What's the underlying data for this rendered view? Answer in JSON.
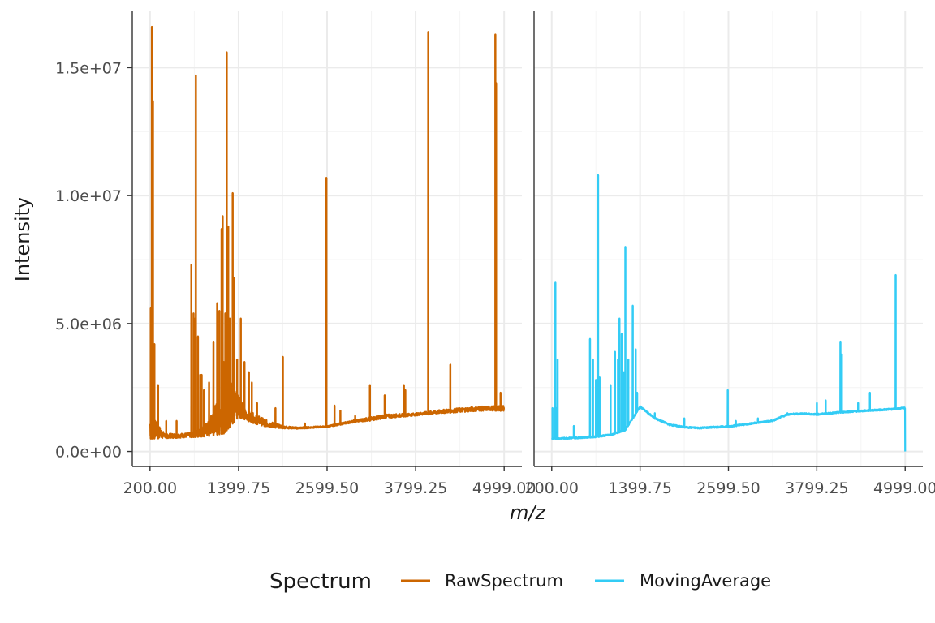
{
  "chart_data": {
    "type": "line",
    "xlabel": "m/z",
    "ylabel": "Intensity",
    "x_ticks": [
      "200.00",
      "1399.75",
      "2599.50",
      "3799.25",
      "4999.00"
    ],
    "x_tick_values": [
      200.0,
      1399.75,
      2599.5,
      3799.25,
      4999.0
    ],
    "y_ticks": [
      "0.0e+00",
      "5.0e+06",
      "1.0e+07",
      "1.5e+07"
    ],
    "y_tick_values": [
      0,
      5000000,
      10000000,
      15000000
    ],
    "xlim": [
      200,
      4999
    ],
    "ylim": [
      0,
      16700000
    ],
    "grid": true,
    "legend": {
      "title": "Spectrum",
      "placement": "bottom",
      "entries": [
        "RawSpectrum",
        "MovingAverage"
      ]
    },
    "colors": {
      "RawSpectrum": "#CC6600",
      "MovingAverage": "#33CCF5"
    },
    "panels": [
      {
        "series": "RawSpectrum",
        "baseline": [
          [
            200,
            500000
          ],
          [
            500,
            520000
          ],
          [
            800,
            560000
          ],
          [
            1000,
            600000
          ],
          [
            1200,
            700000
          ],
          [
            1400,
            1350000
          ],
          [
            1600,
            1100000
          ],
          [
            1800,
            950000
          ],
          [
            2000,
            900000
          ],
          [
            2200,
            880000
          ],
          [
            2599,
            950000
          ],
          [
            2800,
            1050000
          ],
          [
            3000,
            1150000
          ],
          [
            3200,
            1200000
          ],
          [
            3400,
            1300000
          ],
          [
            3600,
            1350000
          ],
          [
            3800,
            1400000
          ],
          [
            4000,
            1450000
          ],
          [
            4200,
            1500000
          ],
          [
            4500,
            1550000
          ],
          [
            4800,
            1600000
          ],
          [
            4999,
            1580000
          ]
        ],
        "noise_band": [
          [
            200,
            1500000
          ],
          [
            400,
            700000
          ],
          [
            600,
            700000
          ],
          [
            800,
            750000
          ],
          [
            1000,
            1200000
          ],
          [
            1100,
            2000000
          ],
          [
            1200,
            2200000
          ],
          [
            1300,
            2800000
          ],
          [
            1400,
            2400000
          ],
          [
            1500,
            1600000
          ],
          [
            1600,
            1500000
          ],
          [
            1800,
            1200000
          ],
          [
            2000,
            1000000
          ],
          [
            2200,
            950000
          ],
          [
            2599,
            1000000
          ],
          [
            3000,
            1250000
          ],
          [
            3400,
            1450000
          ],
          [
            3800,
            1500000
          ],
          [
            4200,
            1650000
          ],
          [
            4600,
            1750000
          ],
          [
            4999,
            1800000
          ]
        ],
        "peaks": [
          [
            210,
            5600000
          ],
          [
            225,
            16600000
          ],
          [
            240,
            13700000
          ],
          [
            260,
            4200000
          ],
          [
            310,
            2600000
          ],
          [
            420,
            1200000
          ],
          [
            560,
            1200000
          ],
          [
            760,
            7300000
          ],
          [
            790,
            5400000
          ],
          [
            810,
            5200000
          ],
          [
            822,
            14700000
          ],
          [
            850,
            4500000
          ],
          [
            880,
            3000000
          ],
          [
            900,
            3000000
          ],
          [
            930,
            2400000
          ],
          [
            1000,
            2700000
          ],
          [
            1060,
            4300000
          ],
          [
            1110,
            5800000
          ],
          [
            1140,
            5500000
          ],
          [
            1170,
            8700000
          ],
          [
            1185,
            9200000
          ],
          [
            1200,
            3500000
          ],
          [
            1220,
            5400000
          ],
          [
            1240,
            15600000
          ],
          [
            1260,
            8800000
          ],
          [
            1280,
            5200000
          ],
          [
            1320,
            10100000
          ],
          [
            1340,
            6800000
          ],
          [
            1380,
            3600000
          ],
          [
            1430,
            5200000
          ],
          [
            1480,
            3500000
          ],
          [
            1540,
            3100000
          ],
          [
            1580,
            2700000
          ],
          [
            1650,
            1900000
          ],
          [
            1750,
            1200000
          ],
          [
            1900,
            1700000
          ],
          [
            2000,
            3700000
          ],
          [
            2300,
            1100000
          ],
          [
            2590,
            10700000
          ],
          [
            2700,
            1800000
          ],
          [
            2780,
            1600000
          ],
          [
            2980,
            1400000
          ],
          [
            3180,
            2600000
          ],
          [
            3380,
            2200000
          ],
          [
            3640,
            2600000
          ],
          [
            3660,
            2400000
          ],
          [
            3970,
            16400000
          ],
          [
            4270,
            3400000
          ],
          [
            4880,
            16300000
          ],
          [
            4890,
            14400000
          ],
          [
            4950,
            2300000
          ]
        ]
      },
      {
        "series": "MovingAverage",
        "baseline": [
          [
            200,
            500000
          ],
          [
            500,
            530000
          ],
          [
            800,
            580000
          ],
          [
            1000,
            650000
          ],
          [
            1200,
            850000
          ],
          [
            1400,
            1750000
          ],
          [
            1600,
            1300000
          ],
          [
            1800,
            1050000
          ],
          [
            2000,
            950000
          ],
          [
            2200,
            920000
          ],
          [
            2599,
            980000
          ],
          [
            2800,
            1050000
          ],
          [
            3000,
            1130000
          ],
          [
            3200,
            1200000
          ],
          [
            3400,
            1450000
          ],
          [
            3600,
            1480000
          ],
          [
            3800,
            1450000
          ],
          [
            4000,
            1500000
          ],
          [
            4200,
            1550000
          ],
          [
            4500,
            1600000
          ],
          [
            4800,
            1650000
          ],
          [
            4999,
            1700000
          ]
        ],
        "peaks": [
          [
            210,
            1700000
          ],
          [
            250,
            6600000
          ],
          [
            265,
            1700000
          ],
          [
            280,
            3600000
          ],
          [
            500,
            1000000
          ],
          [
            720,
            4400000
          ],
          [
            760,
            3600000
          ],
          [
            800,
            2800000
          ],
          [
            830,
            10800000
          ],
          [
            850,
            2900000
          ],
          [
            1000,
            2600000
          ],
          [
            1060,
            3900000
          ],
          [
            1100,
            3600000
          ],
          [
            1120,
            5200000
          ],
          [
            1150,
            4600000
          ],
          [
            1180,
            3100000
          ],
          [
            1200,
            8000000
          ],
          [
            1240,
            3600000
          ],
          [
            1300,
            5700000
          ],
          [
            1340,
            4000000
          ],
          [
            1360,
            2300000
          ],
          [
            1600,
            1500000
          ],
          [
            2000,
            1300000
          ],
          [
            2590,
            2400000
          ],
          [
            2700,
            1200000
          ],
          [
            3000,
            1300000
          ],
          [
            3400,
            1500000
          ],
          [
            3800,
            1900000
          ],
          [
            3920,
            2000000
          ],
          [
            4120,
            4300000
          ],
          [
            4140,
            3800000
          ],
          [
            4360,
            1900000
          ],
          [
            4520,
            2300000
          ],
          [
            4870,
            6900000
          ]
        ],
        "end_drop": [
          [
            4999,
            0
          ]
        ]
      }
    ]
  }
}
